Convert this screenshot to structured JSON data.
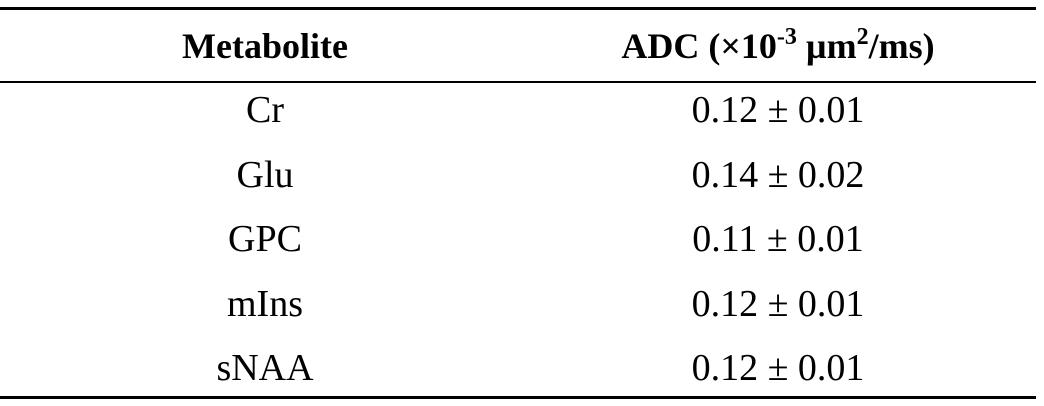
{
  "table": {
    "header": [
      "Metabolite",
      [
        "ADC (×10",
        "-3",
        " µm",
        "2",
        "/ms)"
      ]
    ],
    "rows": [
      [
        "Cr",
        "0.12 ± 0.01"
      ],
      [
        "Glu",
        "0.14 ± 0.02"
      ],
      [
        "GPC",
        "0.11 ± 0.01"
      ],
      [
        "mIns",
        "0.12 ± 0.01"
      ],
      [
        "sNAA",
        "0.12 ± 0.01"
      ]
    ]
  }
}
